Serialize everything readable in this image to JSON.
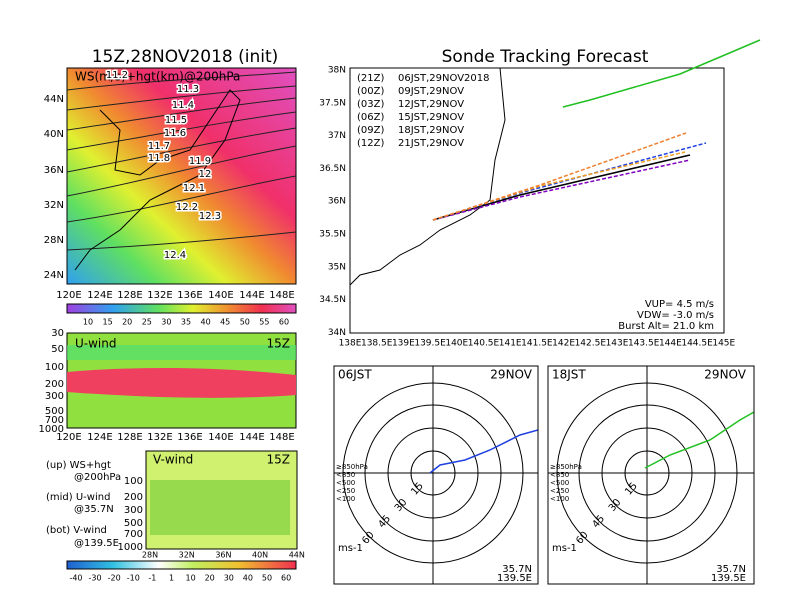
{
  "left_panel": {
    "title": "15Z,28NOV2018 (init)",
    "map": {
      "label": "WS(m/s)+hgt(km)@200hPa",
      "lat_labels": [
        "44N",
        "40N",
        "36N",
        "32N",
        "28N",
        "24N"
      ],
      "lon_labels": [
        "120E",
        "124E",
        "128E",
        "132E",
        "136E",
        "140E",
        "144E",
        "148E"
      ],
      "contour_labels": [
        "11.2",
        "11.3",
        "11.4",
        "11.5",
        "11.6",
        "11.7",
        "11.8",
        "11.9",
        "12",
        "12.1",
        "12.2",
        "12.3",
        "12.4"
      ]
    },
    "ws_colorbar": [
      "10",
      "15",
      "20",
      "25",
      "30",
      "35",
      "40",
      "45",
      "50",
      "55",
      "60"
    ],
    "u_wind": {
      "label": "U-wind",
      "time": "15Z",
      "levels": [
        "30",
        "50",
        "100",
        "200",
        "300",
        "500",
        "700",
        "1000"
      ],
      "lon_labels": [
        "120E",
        "124E",
        "128E",
        "132E",
        "136E",
        "140E",
        "144E",
        "148E"
      ]
    },
    "notes": [
      "(up) WS+hgt",
      "@200hPa",
      "(mid) U-wind",
      "@35.7N",
      "(bot) V-wind",
      "@139.5E"
    ],
    "v_wind": {
      "label": "V-wind",
      "time": "15Z",
      "levels": [
        "100",
        "200",
        "300",
        "500",
        "700",
        "1000"
      ],
      "lat_labels": [
        "28N",
        "32N",
        "36N",
        "40N",
        "44N"
      ]
    },
    "v_colorbar": [
      "-40",
      "-30",
      "-20",
      "-10",
      "-1",
      "1",
      "10",
      "20",
      "30",
      "40",
      "50",
      "60"
    ]
  },
  "tracking": {
    "title": "Sonde Tracking Forecast",
    "legend": [
      {
        "utc": "(21Z)",
        "jst": "06JST,29NOV2018"
      },
      {
        "utc": "(00Z)",
        "jst": "09JST,29NOV"
      },
      {
        "utc": "(03Z)",
        "jst": "12JST,29NOV"
      },
      {
        "utc": "(06Z)",
        "jst": "15JST,29NOV"
      },
      {
        "utc": "(09Z)",
        "jst": "18JST,29NOV"
      },
      {
        "utc": "(12Z)",
        "jst": "21JST,29NOV"
      }
    ],
    "lat_labels": [
      "38N",
      "37.5N",
      "37N",
      "36.5N",
      "36N",
      "35.5N",
      "35N",
      "34.5N",
      "34N"
    ],
    "lon_labels": [
      "138E",
      "138.5E",
      "139E",
      "139.5E",
      "140E",
      "140.5E",
      "141E",
      "141.5E",
      "142E",
      "142.5E",
      "143E",
      "143.5E",
      "144E",
      "144.5E",
      "145E"
    ],
    "stats": [
      "VUP= 4.5 m/s",
      "VDW= -3.0 m/s",
      "Burst Alt= 21.0 km"
    ]
  },
  "hodographs": [
    {
      "time": "06JST",
      "date": "29NOV",
      "rings": [
        "15",
        "30",
        "45",
        "60"
      ],
      "levels": [
        "≥850hPa",
        "<850",
        "<500",
        "<250",
        "<100"
      ],
      "unit": "ms-1",
      "location": [
        "35.7N",
        "139.5E"
      ]
    },
    {
      "time": "18JST",
      "date": "29NOV",
      "rings": [
        "15",
        "30",
        "45",
        "60"
      ],
      "levels": [
        "≥850hPa",
        "<850",
        "<500",
        "<250",
        "<100"
      ],
      "unit": "ms-1",
      "location": [
        "35.7N",
        "139.5E"
      ]
    }
  ]
}
